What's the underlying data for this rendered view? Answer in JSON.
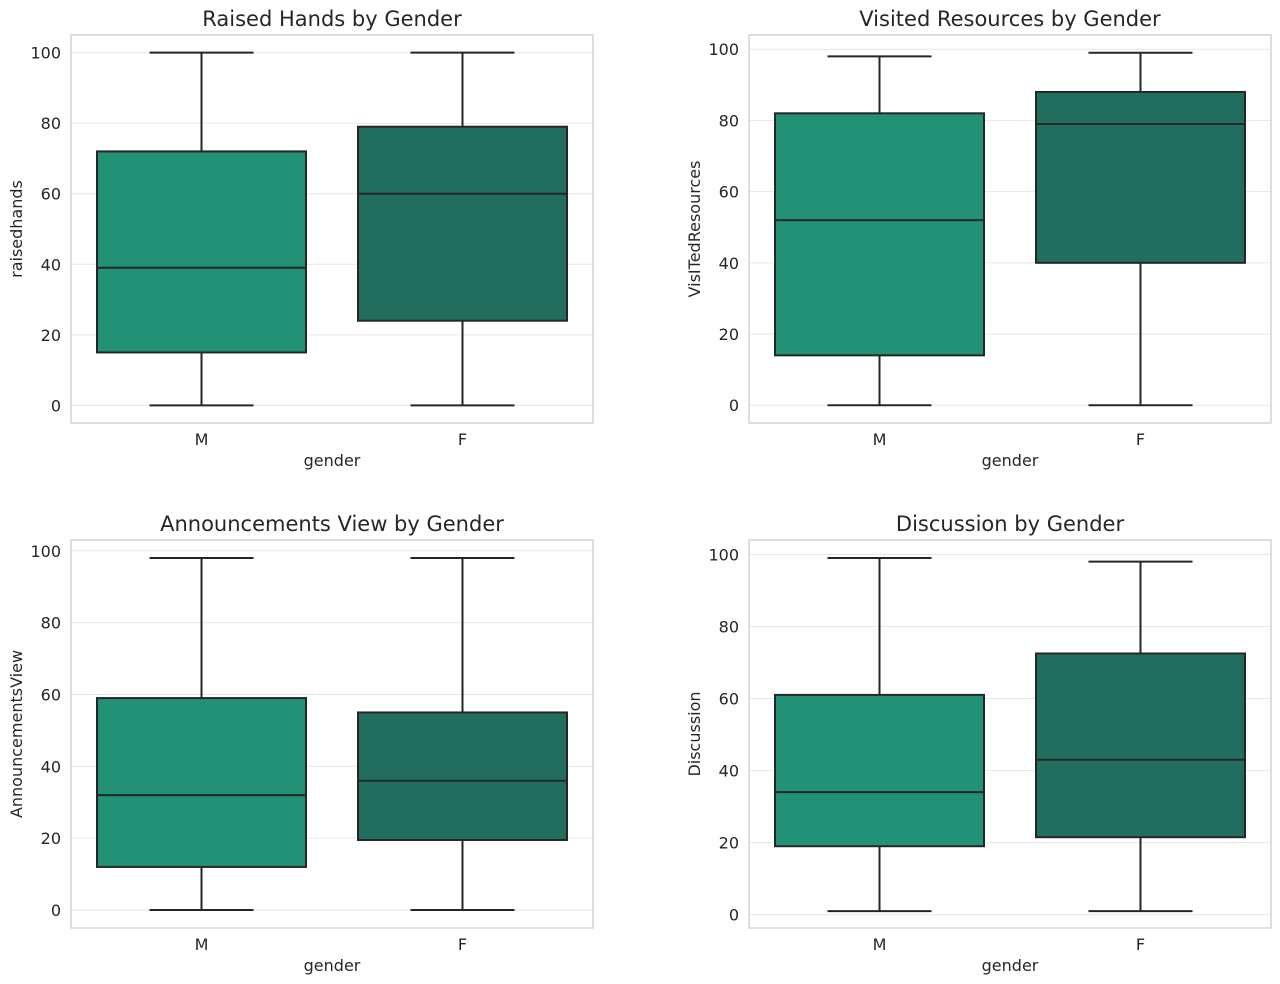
{
  "chart_data": [
    {
      "type": "box",
      "title": "Raised Hands by Gender",
      "xlabel": "gender",
      "ylabel": "raisedhands",
      "categories": [
        "M",
        "F"
      ],
      "yticks": [
        "0",
        "20",
        "40",
        "60",
        "80",
        "100"
      ],
      "ylim": [
        -5,
        105
      ],
      "grid": true,
      "boxes": [
        {
          "category": "M",
          "min": 0,
          "q1": 15,
          "median": 39,
          "q3": 72,
          "max": 100,
          "color": "#229176"
        },
        {
          "category": "F",
          "min": 0,
          "q1": 24,
          "median": 60,
          "q3": 79,
          "max": 100,
          "color": "#226e5e"
        }
      ]
    },
    {
      "type": "box",
      "title": "Visited Resources by Gender",
      "xlabel": "gender",
      "ylabel": "VisITedResources",
      "categories": [
        "M",
        "F"
      ],
      "yticks": [
        "0",
        "20",
        "40",
        "60",
        "80",
        "100"
      ],
      "ylim": [
        -5,
        104
      ],
      "grid": true,
      "boxes": [
        {
          "category": "M",
          "min": 0,
          "q1": 14,
          "median": 52,
          "q3": 82,
          "max": 98,
          "color": "#229176"
        },
        {
          "category": "F",
          "min": 0,
          "q1": 40,
          "median": 79,
          "q3": 88,
          "max": 99,
          "color": "#226e5e"
        }
      ]
    },
    {
      "type": "box",
      "title": "Announcements View by Gender",
      "xlabel": "gender",
      "ylabel": "AnnouncementsView",
      "categories": [
        "M",
        "F"
      ],
      "yticks": [
        "0",
        "20",
        "40",
        "60",
        "80",
        "100"
      ],
      "ylim": [
        -5,
        103
      ],
      "grid": true,
      "boxes": [
        {
          "category": "M",
          "min": 0,
          "q1": 12,
          "median": 32,
          "q3": 59,
          "max": 98,
          "color": "#229176"
        },
        {
          "category": "F",
          "min": 0,
          "q1": 19.5,
          "median": 36,
          "q3": 55,
          "max": 98,
          "color": "#226e5e"
        }
      ]
    },
    {
      "type": "box",
      "title": "Discussion by Gender",
      "xlabel": "gender",
      "ylabel": "Discussion",
      "categories": [
        "M",
        "F"
      ],
      "yticks": [
        "0",
        "20",
        "40",
        "60",
        "80",
        "100"
      ],
      "ylim": [
        -3.7,
        104
      ],
      "grid": true,
      "boxes": [
        {
          "category": "M",
          "min": 1,
          "q1": 19,
          "median": 34,
          "q3": 61,
          "max": 99,
          "color": "#229176"
        },
        {
          "category": "F",
          "min": 1,
          "q1": 21.5,
          "median": 43,
          "q3": 72.5,
          "max": 98,
          "color": "#226e5e"
        }
      ]
    }
  ]
}
